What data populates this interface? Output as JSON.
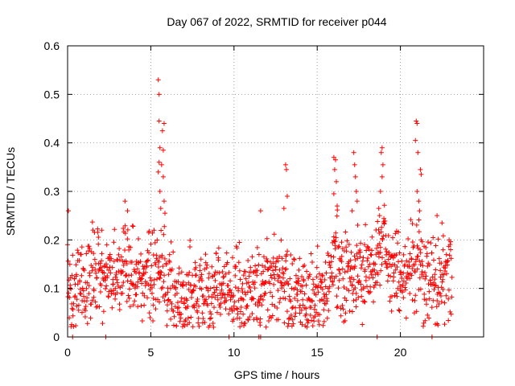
{
  "chart_data": {
    "type": "scatter",
    "title": "Day 067 of 2022, SRMTID for receiver p044",
    "xlabel": "GPS time / hours",
    "ylabel": "SRMTID / TECUs",
    "xlim": [
      0,
      25
    ],
    "ylim": [
      0,
      0.6
    ],
    "x_ticks": [
      "0",
      "5",
      "10",
      "15",
      "20"
    ],
    "y_ticks": [
      "0",
      "0.1",
      "0.2",
      "0.3",
      "0.4",
      "0.5",
      "0.6"
    ],
    "grid": true,
    "marker": "plus",
    "series_color": "#ff0000",
    "markers_on_zero": [
      0.3,
      2.3,
      9.7,
      11.5,
      11.6,
      18.6,
      21.9
    ],
    "spikes": [
      {
        "x": 5.45,
        "y": 0.53
      },
      {
        "x": 5.5,
        "y": 0.5
      },
      {
        "x": 5.5,
        "y": 0.445
      },
      {
        "x": 5.8,
        "y": 0.44
      },
      {
        "x": 5.7,
        "y": 0.425
      },
      {
        "x": 5.55,
        "y": 0.39
      },
      {
        "x": 5.75,
        "y": 0.385
      },
      {
        "x": 5.5,
        "y": 0.36
      },
      {
        "x": 5.65,
        "y": 0.355
      },
      {
        "x": 5.45,
        "y": 0.34
      },
      {
        "x": 5.75,
        "y": 0.33
      },
      {
        "x": 5.55,
        "y": 0.3
      },
      {
        "x": 5.8,
        "y": 0.28
      },
      {
        "x": 5.6,
        "y": 0.265
      },
      {
        "x": 5.85,
        "y": 0.255
      },
      {
        "x": 3.45,
        "y": 0.28
      },
      {
        "x": 3.6,
        "y": 0.26
      },
      {
        "x": 0.05,
        "y": 0.26
      },
      {
        "x": 2.05,
        "y": 0.22
      },
      {
        "x": 13.1,
        "y": 0.355
      },
      {
        "x": 13.15,
        "y": 0.345
      },
      {
        "x": 13.2,
        "y": 0.29
      },
      {
        "x": 13.0,
        "y": 0.265
      },
      {
        "x": 11.6,
        "y": 0.26
      },
      {
        "x": 16.0,
        "y": 0.37
      },
      {
        "x": 16.1,
        "y": 0.365
      },
      {
        "x": 16.05,
        "y": 0.345
      },
      {
        "x": 16.15,
        "y": 0.32
      },
      {
        "x": 16.0,
        "y": 0.295
      },
      {
        "x": 16.2,
        "y": 0.27
      },
      {
        "x": 17.2,
        "y": 0.38
      },
      {
        "x": 17.25,
        "y": 0.355
      },
      {
        "x": 17.3,
        "y": 0.33
      },
      {
        "x": 17.35,
        "y": 0.3
      },
      {
        "x": 17.4,
        "y": 0.28
      },
      {
        "x": 17.1,
        "y": 0.26
      },
      {
        "x": 18.9,
        "y": 0.39
      },
      {
        "x": 18.85,
        "y": 0.38
      },
      {
        "x": 18.95,
        "y": 0.355
      },
      {
        "x": 18.9,
        "y": 0.33
      },
      {
        "x": 18.8,
        "y": 0.3
      },
      {
        "x": 18.7,
        "y": 0.265
      },
      {
        "x": 18.75,
        "y": 0.25
      },
      {
        "x": 20.95,
        "y": 0.445
      },
      {
        "x": 21.0,
        "y": 0.44
      },
      {
        "x": 20.9,
        "y": 0.405
      },
      {
        "x": 21.05,
        "y": 0.38
      },
      {
        "x": 21.2,
        "y": 0.345
      },
      {
        "x": 21.25,
        "y": 0.335
      },
      {
        "x": 21.0,
        "y": 0.3
      },
      {
        "x": 21.1,
        "y": 0.28
      },
      {
        "x": 21.15,
        "y": 0.26
      },
      {
        "x": 22.2,
        "y": 0.25
      },
      {
        "x": 22.5,
        "y": 0.235
      }
    ],
    "baseline_profile": [
      {
        "x": 0.0,
        "y": 0.1
      },
      {
        "x": 1.0,
        "y": 0.11
      },
      {
        "x": 1.5,
        "y": 0.14
      },
      {
        "x": 2.0,
        "y": 0.12
      },
      {
        "x": 2.5,
        "y": 0.13
      },
      {
        "x": 3.0,
        "y": 0.11
      },
      {
        "x": 3.5,
        "y": 0.15
      },
      {
        "x": 4.0,
        "y": 0.12
      },
      {
        "x": 4.5,
        "y": 0.13
      },
      {
        "x": 5.0,
        "y": 0.12
      },
      {
        "x": 5.5,
        "y": 0.17
      },
      {
        "x": 6.0,
        "y": 0.1
      },
      {
        "x": 7.0,
        "y": 0.08
      },
      {
        "x": 8.0,
        "y": 0.08
      },
      {
        "x": 9.0,
        "y": 0.1
      },
      {
        "x": 10.0,
        "y": 0.09
      },
      {
        "x": 11.0,
        "y": 0.08
      },
      {
        "x": 12.0,
        "y": 0.12
      },
      {
        "x": 13.0,
        "y": 0.13
      },
      {
        "x": 13.5,
        "y": 0.08
      },
      {
        "x": 14.5,
        "y": 0.08
      },
      {
        "x": 15.5,
        "y": 0.1
      },
      {
        "x": 16.0,
        "y": 0.16
      },
      {
        "x": 16.5,
        "y": 0.12
      },
      {
        "x": 17.5,
        "y": 0.12
      },
      {
        "x": 18.5,
        "y": 0.15
      },
      {
        "x": 19.0,
        "y": 0.19
      },
      {
        "x": 19.5,
        "y": 0.14
      },
      {
        "x": 20.5,
        "y": 0.13
      },
      {
        "x": 21.0,
        "y": 0.16
      },
      {
        "x": 21.5,
        "y": 0.12
      },
      {
        "x": 22.5,
        "y": 0.11
      },
      {
        "x": 23.0,
        "y": 0.13
      }
    ],
    "cloud_extent_x": [
      0.0,
      23.1
    ],
    "cloud_spread": 0.045
  }
}
